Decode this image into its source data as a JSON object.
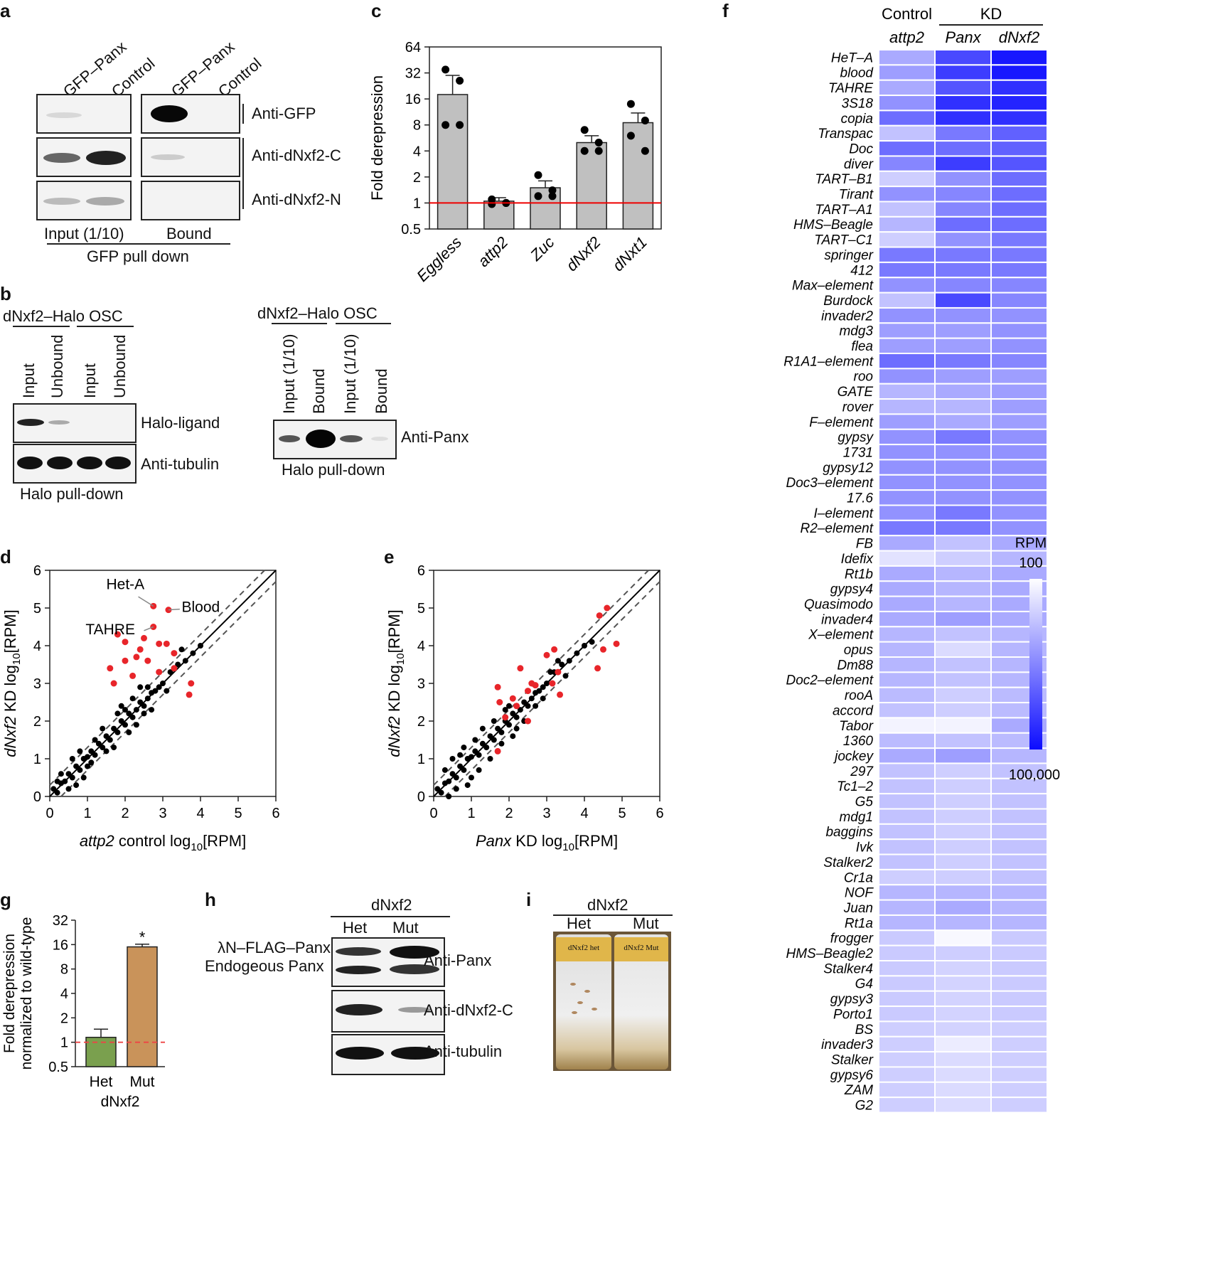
{
  "panel_letters": [
    "a",
    "b",
    "c",
    "d",
    "e",
    "f",
    "g",
    "h",
    "i"
  ],
  "panel_a": {
    "lanes": [
      "GFP–Panx",
      "Control",
      "GFP–Panx",
      "Control"
    ],
    "antibodies": [
      "Anti-GFP",
      "Anti-dNxf2-C",
      "Anti-dNxf2-N"
    ],
    "groups": [
      "Input (1/10)",
      "Bound"
    ],
    "footer": "GFP pull down"
  },
  "panel_b": {
    "left_title": "dNxf2–Halo OSC",
    "left_lanes": [
      "Input",
      "Unbound",
      "Input",
      "Unbound"
    ],
    "left_rows": [
      "Halo-ligand",
      "Anti-tubulin"
    ],
    "left_footer": "Halo pull-down",
    "right_title": "dNxf2–Halo OSC",
    "right_lanes": [
      "Input (1/10)",
      "Bound",
      "Input (1/10)",
      "Bound"
    ],
    "right_rows": [
      "Anti-Panx"
    ],
    "right_footer": "Halo pull-down"
  },
  "panel_h": {
    "title": "dNxf2",
    "lanes": [
      "Het",
      "Mut"
    ],
    "left_labels": [
      "λN–FLAG–Panx",
      "Endogeous Panx"
    ],
    "rows": [
      "Anti-Panx",
      "Anti-dNxf2-C",
      "Anti-tubulin"
    ]
  },
  "panel_i": {
    "title": "dNxf2",
    "lanes": [
      "Het",
      "Mut"
    ],
    "vial_labels": [
      "dNxf2 het",
      "dNxf2 Mut"
    ]
  },
  "chart_data": [
    {
      "id": "c",
      "type": "bar",
      "categories": [
        "Eggless",
        "attp2",
        "Zuc",
        "dNxf2",
        "dNxt1"
      ],
      "values": [
        18,
        1.05,
        1.5,
        5,
        8.5
      ],
      "errors": [
        12,
        0.1,
        0.3,
        1,
        2.5
      ],
      "points": [
        [
          35,
          26,
          8,
          8
        ],
        [
          1.1,
          1.0,
          0.97,
          1.0
        ],
        [
          2.1,
          1.4,
          1.2,
          1.2
        ],
        [
          7,
          5,
          4,
          4
        ],
        [
          14,
          9,
          6,
          4
        ]
      ],
      "ylabel": "Fold derepression",
      "yticks": [
        0.5,
        1,
        2,
        4,
        8,
        16,
        32,
        64
      ],
      "ylim": [
        0.5,
        64
      ],
      "yscale": "log2",
      "refline": 1
    },
    {
      "id": "d",
      "type": "scatter",
      "xlabel_italic": "attp2",
      "xlabel_rest": " control log",
      "xlabel_sub": "10",
      "xlabel_end": "[RPM]",
      "ylabel_italic": "dNxf2",
      "ylabel_rest": " KD log",
      "ylabel_sub": "10",
      "ylabel_end": "[RPM]",
      "xlim": [
        0,
        6
      ],
      "ylim": [
        0,
        6
      ],
      "ticks": [
        0,
        1,
        2,
        3,
        4,
        5,
        6
      ],
      "annotations": [
        {
          "text": "Het-A",
          "x": 2.75,
          "y": 5.05
        },
        {
          "text": "Blood",
          "x": 3.15,
          "y": 4.95
        },
        {
          "text": "TAHRE",
          "x": 2.75,
          "y": 4.5
        }
      ],
      "red_points": [
        [
          2.75,
          5.05
        ],
        [
          3.15,
          4.95
        ],
        [
          2.75,
          4.5
        ],
        [
          1.8,
          4.3
        ],
        [
          2.0,
          4.1
        ],
        [
          2.5,
          4.2
        ],
        [
          2.9,
          4.05
        ],
        [
          3.1,
          4.05
        ],
        [
          3.3,
          3.8
        ],
        [
          2.3,
          3.7
        ],
        [
          2.6,
          3.6
        ],
        [
          2.9,
          3.3
        ],
        [
          3.3,
          3.4
        ],
        [
          3.75,
          3.0
        ],
        [
          1.7,
          3.0
        ],
        [
          2.2,
          3.2
        ],
        [
          3.7,
          2.7
        ],
        [
          1.6,
          3.4
        ],
        [
          2.0,
          3.6
        ],
        [
          2.4,
          3.9
        ]
      ],
      "black_points": [
        [
          0.1,
          0.2
        ],
        [
          0.2,
          0.1
        ],
        [
          0.3,
          0.35
        ],
        [
          0.4,
          0.4
        ],
        [
          0.5,
          0.6
        ],
        [
          0.6,
          0.5
        ],
        [
          0.7,
          0.8
        ],
        [
          0.8,
          0.7
        ],
        [
          0.9,
          1.0
        ],
        [
          1.0,
          1.05
        ],
        [
          1.1,
          1.2
        ],
        [
          1.2,
          1.1
        ],
        [
          1.3,
          1.4
        ],
        [
          1.4,
          1.3
        ],
        [
          1.5,
          1.6
        ],
        [
          1.6,
          1.5
        ],
        [
          1.7,
          1.8
        ],
        [
          1.8,
          1.7
        ],
        [
          1.9,
          2.0
        ],
        [
          2.0,
          1.9
        ],
        [
          2.1,
          2.2
        ],
        [
          2.2,
          2.1
        ],
        [
          2.3,
          2.3
        ],
        [
          2.4,
          2.5
        ],
        [
          2.5,
          2.4
        ],
        [
          2.6,
          2.6
        ],
        [
          2.7,
          2.75
        ],
        [
          2.8,
          2.8
        ],
        [
          2.9,
          2.9
        ],
        [
          3.0,
          3.0
        ],
        [
          3.2,
          3.3
        ],
        [
          3.4,
          3.5
        ],
        [
          3.6,
          3.6
        ],
        [
          3.8,
          3.8
        ],
        [
          4.0,
          4.0
        ],
        [
          2.2,
          2.6
        ],
        [
          1.9,
          2.4
        ],
        [
          2.5,
          2.2
        ],
        [
          1.5,
          1.2
        ],
        [
          1.0,
          0.8
        ],
        [
          0.6,
          1.0
        ],
        [
          0.3,
          0.6
        ],
        [
          1.2,
          1.5
        ],
        [
          2.7,
          2.3
        ],
        [
          2.0,
          2.3
        ],
        [
          1.7,
          1.3
        ],
        [
          0.9,
          0.5
        ],
        [
          0.5,
          0.2
        ],
        [
          3.1,
          2.8
        ],
        [
          2.4,
          2.9
        ],
        [
          1.4,
          1.8
        ],
        [
          0.8,
          1.2
        ],
        [
          2.1,
          1.7
        ],
        [
          2.6,
          2.9
        ],
        [
          1.8,
          2.2
        ],
        [
          1.1,
          0.9
        ],
        [
          0.2,
          0.4
        ],
        [
          3.5,
          3.9
        ],
        [
          0.7,
          0.3
        ],
        [
          2.3,
          1.9
        ]
      ]
    },
    {
      "id": "e",
      "type": "scatter",
      "xlabel_italic": "Panx",
      "xlabel_rest": " KD log",
      "xlabel_sub": "10",
      "xlabel_end": "[RPM]",
      "ylabel_italic": "dNxf2",
      "ylabel_rest": " KD log",
      "ylabel_sub": "10",
      "ylabel_end": "[RPM]",
      "xlim": [
        0,
        6
      ],
      "ylim": [
        0,
        6
      ],
      "ticks": [
        0,
        1,
        2,
        3,
        4,
        5,
        6
      ],
      "red_points": [
        [
          4.6,
          5.0
        ],
        [
          4.4,
          4.8
        ],
        [
          4.85,
          4.05
        ],
        [
          4.35,
          3.4
        ],
        [
          4.5,
          3.9
        ],
        [
          3.0,
          3.75
        ],
        [
          2.3,
          3.4
        ],
        [
          2.7,
          2.95
        ],
        [
          3.15,
          3.0
        ],
        [
          3.35,
          2.7
        ],
        [
          2.5,
          2.8
        ],
        [
          1.7,
          2.9
        ],
        [
          1.75,
          2.5
        ],
        [
          2.1,
          2.6
        ],
        [
          2.2,
          2.4
        ],
        [
          2.5,
          2.0
        ],
        [
          1.9,
          2.1
        ],
        [
          1.7,
          1.2
        ],
        [
          3.2,
          3.9
        ],
        [
          2.6,
          3.0
        ],
        [
          3.3,
          3.3
        ]
      ],
      "black_points": [
        [
          0.1,
          0.2
        ],
        [
          0.2,
          0.1
        ],
        [
          0.3,
          0.35
        ],
        [
          0.4,
          0.4
        ],
        [
          0.5,
          0.6
        ],
        [
          0.6,
          0.5
        ],
        [
          0.7,
          0.8
        ],
        [
          0.8,
          0.7
        ],
        [
          0.9,
          1.0
        ],
        [
          1.0,
          1.05
        ],
        [
          1.1,
          1.2
        ],
        [
          1.2,
          1.1
        ],
        [
          1.3,
          1.4
        ],
        [
          1.4,
          1.3
        ],
        [
          1.5,
          1.6
        ],
        [
          1.6,
          1.5
        ],
        [
          1.7,
          1.8
        ],
        [
          1.8,
          1.7
        ],
        [
          1.9,
          2.0
        ],
        [
          2.0,
          1.9
        ],
        [
          2.1,
          2.2
        ],
        [
          2.2,
          2.1
        ],
        [
          2.3,
          2.3
        ],
        [
          2.4,
          2.5
        ],
        [
          2.5,
          2.4
        ],
        [
          2.6,
          2.6
        ],
        [
          2.7,
          2.75
        ],
        [
          2.8,
          2.8
        ],
        [
          2.9,
          2.9
        ],
        [
          3.0,
          3.0
        ],
        [
          3.2,
          3.3
        ],
        [
          3.4,
          3.5
        ],
        [
          3.6,
          3.6
        ],
        [
          3.8,
          3.8
        ],
        [
          4.0,
          4.0
        ],
        [
          4.2,
          4.1
        ],
        [
          1.2,
          0.7
        ],
        [
          0.8,
          1.3
        ],
        [
          1.5,
          1.0
        ],
        [
          0.5,
          1.0
        ],
        [
          2.2,
          1.8
        ],
        [
          2.0,
          2.4
        ],
        [
          1.0,
          0.5
        ],
        [
          0.6,
          0.2
        ],
        [
          0.3,
          0.7
        ],
        [
          2.4,
          2.0
        ],
        [
          1.8,
          1.4
        ],
        [
          1.3,
          1.8
        ],
        [
          0.9,
          0.3
        ],
        [
          2.7,
          2.4
        ],
        [
          3.1,
          3.3
        ],
        [
          0.4,
          0.0
        ],
        [
          3.5,
          3.2
        ],
        [
          1.6,
          2.0
        ],
        [
          2.9,
          2.6
        ],
        [
          1.1,
          1.5
        ],
        [
          0.7,
          1.1
        ],
        [
          3.3,
          3.6
        ],
        [
          2.1,
          1.6
        ],
        [
          1.9,
          2.3
        ]
      ]
    },
    {
      "id": "f",
      "type": "heatmap",
      "group_labels": [
        "Control",
        "KD"
      ],
      "columns": [
        "attp2",
        "Panx",
        "dNxf2"
      ],
      "rows": [
        "HeT–A",
        "blood",
        "TAHRE",
        "3S18",
        "copia",
        "Transpac",
        "Doc",
        "diver",
        "TART–B1",
        "Tirant",
        "TART–A1",
        "HMS–Beagle",
        "TART–C1",
        "springer",
        "412",
        "Max–element",
        "Burdock",
        "invader2",
        "mdg3",
        "flea",
        "R1A1–element",
        "roo",
        "GATE",
        "rover",
        "F–element",
        "gypsy",
        "1731",
        "gypsy12",
        "Doc3–element",
        "17.6",
        "I–element",
        "R2–element",
        "FB",
        "Idefix",
        "Rt1b",
        "gypsy4",
        "Quasimodo",
        "invader4",
        "X–element",
        "opus",
        "Dm88",
        "Doc2–element",
        "rooA",
        "accord",
        "Tabor",
        "1360",
        "jockey",
        "297",
        "Tc1–2",
        "G5",
        "mdg1",
        "baggins",
        "Ivk",
        "Stalker2",
        "Cr1a",
        "NOF",
        "Juan",
        "Rt1a",
        "frogger",
        "HMS–Beagle2",
        "Stalker4",
        "G4",
        "gypsy3",
        "Porto1",
        "BS",
        "invader3",
        "Stalker",
        "gypsy6",
        "ZAM",
        "G2"
      ],
      "values": [
        [
          0.35,
          0.75,
          0.95
        ],
        [
          0.4,
          0.8,
          0.95
        ],
        [
          0.35,
          0.7,
          0.85
        ],
        [
          0.45,
          0.85,
          0.9
        ],
        [
          0.6,
          0.85,
          0.85
        ],
        [
          0.25,
          0.55,
          0.65
        ],
        [
          0.6,
          0.6,
          0.65
        ],
        [
          0.5,
          0.8,
          0.7
        ],
        [
          0.2,
          0.45,
          0.6
        ],
        [
          0.45,
          0.5,
          0.6
        ],
        [
          0.25,
          0.5,
          0.6
        ],
        [
          0.3,
          0.6,
          0.6
        ],
        [
          0.2,
          0.45,
          0.55
        ],
        [
          0.55,
          0.55,
          0.55
        ],
        [
          0.55,
          0.55,
          0.55
        ],
        [
          0.45,
          0.5,
          0.5
        ],
        [
          0.25,
          0.75,
          0.5
        ],
        [
          0.45,
          0.45,
          0.45
        ],
        [
          0.4,
          0.4,
          0.45
        ],
        [
          0.4,
          0.4,
          0.45
        ],
        [
          0.6,
          0.55,
          0.5
        ],
        [
          0.45,
          0.4,
          0.4
        ],
        [
          0.3,
          0.35,
          0.4
        ],
        [
          0.3,
          0.3,
          0.4
        ],
        [
          0.4,
          0.35,
          0.4
        ],
        [
          0.45,
          0.55,
          0.45
        ],
        [
          0.45,
          0.45,
          0.45
        ],
        [
          0.45,
          0.45,
          0.45
        ],
        [
          0.45,
          0.45,
          0.45
        ],
        [
          0.45,
          0.45,
          0.45
        ],
        [
          0.45,
          0.55,
          0.45
        ],
        [
          0.55,
          0.55,
          0.45
        ],
        [
          0.35,
          0.25,
          0.35
        ],
        [
          0.12,
          0.2,
          0.3
        ],
        [
          0.35,
          0.3,
          0.35
        ],
        [
          0.35,
          0.3,
          0.35
        ],
        [
          0.35,
          0.3,
          0.35
        ],
        [
          0.35,
          0.4,
          0.35
        ],
        [
          0.3,
          0.25,
          0.3
        ],
        [
          0.3,
          0.15,
          0.3
        ],
        [
          0.3,
          0.25,
          0.3
        ],
        [
          0.3,
          0.25,
          0.3
        ],
        [
          0.28,
          0.2,
          0.28
        ],
        [
          0.25,
          0.2,
          0.28
        ],
        [
          0.05,
          0.05,
          0.35
        ],
        [
          0.28,
          0.25,
          0.28
        ],
        [
          0.35,
          0.4,
          0.3
        ],
        [
          0.25,
          0.2,
          0.25
        ],
        [
          0.25,
          0.2,
          0.25
        ],
        [
          0.25,
          0.2,
          0.25
        ],
        [
          0.25,
          0.2,
          0.25
        ],
        [
          0.25,
          0.2,
          0.25
        ],
        [
          0.25,
          0.2,
          0.25
        ],
        [
          0.25,
          0.2,
          0.25
        ],
        [
          0.2,
          0.2,
          0.25
        ],
        [
          0.3,
          0.3,
          0.3
        ],
        [
          0.3,
          0.35,
          0.3
        ],
        [
          0.3,
          0.3,
          0.3
        ],
        [
          0.22,
          0.03,
          0.22
        ],
        [
          0.22,
          0.2,
          0.22
        ],
        [
          0.22,
          0.18,
          0.22
        ],
        [
          0.22,
          0.18,
          0.22
        ],
        [
          0.22,
          0.18,
          0.22
        ],
        [
          0.22,
          0.18,
          0.22
        ],
        [
          0.2,
          0.18,
          0.2
        ],
        [
          0.2,
          0.08,
          0.2
        ],
        [
          0.2,
          0.15,
          0.2
        ],
        [
          0.2,
          0.15,
          0.2
        ],
        [
          0.2,
          0.15,
          0.2
        ],
        [
          0.2,
          0.15,
          0.2
        ]
      ],
      "legend_title": "RPM",
      "legend_min": "100",
      "legend_max": "100,000"
    },
    {
      "id": "g",
      "type": "bar",
      "categories": [
        "Het",
        "Mut"
      ],
      "values": [
        1.15,
        15
      ],
      "errors": [
        0.3,
        1.2
      ],
      "colors": [
        "#7aa04e",
        "#c9935a"
      ],
      "ylabel_line1": "Fold derepression",
      "ylabel_line2": "normalized to wild-type",
      "xlabel": "dNxf2",
      "yticks": [
        0.5,
        1,
        2,
        4,
        8,
        16,
        32
      ],
      "ylim": [
        0.5,
        32
      ],
      "yscale": "log2",
      "refline": 1,
      "significance": "*"
    }
  ]
}
